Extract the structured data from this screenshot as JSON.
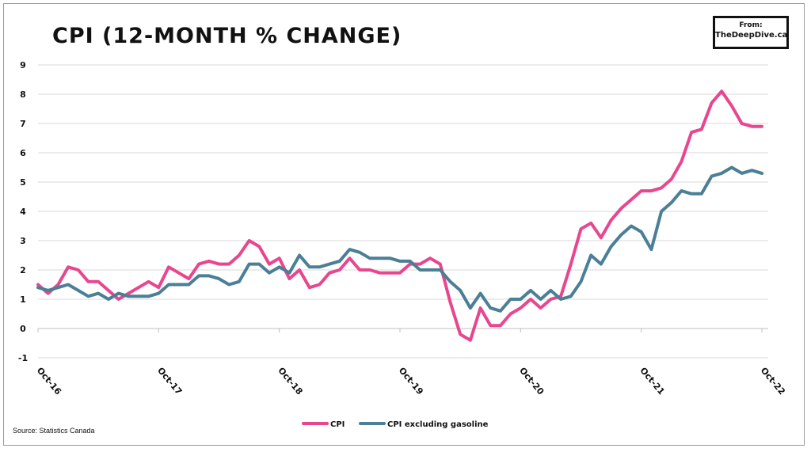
{
  "title": "CPI (12-MONTH % CHANGE)",
  "badge": {
    "line1": "From:",
    "line2": "TheDeepDive.ca"
  },
  "source": "Source: Statistics Canada",
  "colors": {
    "cpi": "#e8468f",
    "core": "#4a7f96",
    "grid": "#d9d9d9",
    "axis": "#bfbfbf"
  },
  "chart_data": {
    "type": "line",
    "ylim": [
      -1,
      9
    ],
    "yticks": [
      -1,
      0,
      1,
      2,
      3,
      4,
      5,
      6,
      7,
      8,
      9
    ],
    "x_tick_labels": [
      "Oct-16",
      "Oct-17",
      "Oct-18",
      "Oct-19",
      "Oct-20",
      "Oct-21",
      "Oct-22"
    ],
    "x_tick_index": [
      0,
      12,
      24,
      36,
      48,
      60,
      72
    ],
    "grid": true,
    "legend_position": "bottom",
    "series": [
      {
        "name": "CPI",
        "color": "#e8468f",
        "values": [
          1.5,
          1.2,
          1.5,
          2.1,
          2.0,
          1.6,
          1.6,
          1.3,
          1.0,
          1.2,
          1.4,
          1.6,
          1.4,
          2.1,
          1.9,
          1.7,
          2.2,
          2.3,
          2.2,
          2.2,
          2.5,
          3.0,
          2.8,
          2.2,
          2.4,
          1.7,
          2.0,
          1.4,
          1.5,
          1.9,
          2.0,
          2.4,
          2.0,
          2.0,
          1.9,
          1.9,
          1.9,
          2.2,
          2.2,
          2.4,
          2.2,
          0.9,
          -0.2,
          -0.4,
          0.7,
          0.1,
          0.1,
          0.5,
          0.7,
          1.0,
          0.7,
          1.0,
          1.1,
          2.2,
          3.4,
          3.6,
          3.1,
          3.7,
          4.1,
          4.4,
          4.7,
          4.7,
          4.8,
          5.1,
          5.7,
          6.7,
          6.8,
          7.7,
          8.1,
          7.6,
          7.0,
          6.9,
          6.9
        ]
      },
      {
        "name": "CPI excluding gasoline",
        "color": "#4a7f96",
        "values": [
          1.4,
          1.3,
          1.4,
          1.5,
          1.3,
          1.1,
          1.2,
          1.0,
          1.2,
          1.1,
          1.1,
          1.1,
          1.2,
          1.5,
          1.5,
          1.5,
          1.8,
          1.8,
          1.7,
          1.5,
          1.6,
          2.2,
          2.2,
          1.9,
          2.1,
          1.9,
          2.5,
          2.1,
          2.1,
          2.2,
          2.3,
          2.7,
          2.6,
          2.4,
          2.4,
          2.4,
          2.3,
          2.3,
          2.0,
          2.0,
          2.0,
          1.6,
          1.3,
          0.7,
          1.2,
          0.7,
          0.6,
          1.0,
          1.0,
          1.3,
          1.0,
          1.3,
          1.0,
          1.1,
          1.6,
          2.5,
          2.2,
          2.8,
          3.2,
          3.5,
          3.3,
          2.7,
          4.0,
          4.3,
          4.7,
          4.6,
          4.6,
          5.2,
          5.3,
          5.5,
          5.3,
          5.4,
          5.3
        ]
      }
    ]
  }
}
